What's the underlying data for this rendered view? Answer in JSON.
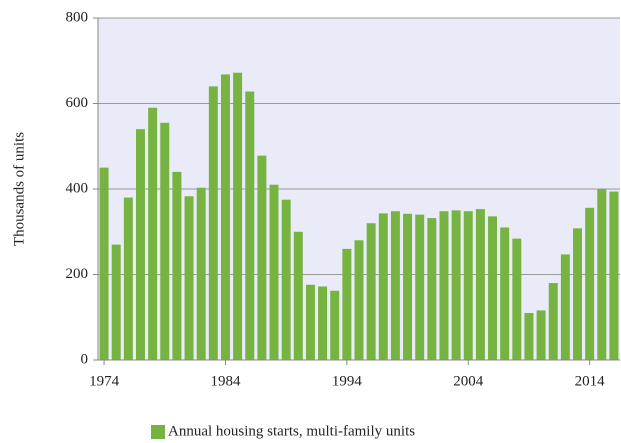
{
  "chart_data": {
    "type": "bar",
    "categories": [
      "1974",
      null,
      null,
      null,
      null,
      null,
      null,
      null,
      null,
      null,
      "1984",
      null,
      null,
      null,
      null,
      null,
      null,
      null,
      null,
      null,
      "1994",
      null,
      null,
      null,
      null,
      null,
      null,
      null,
      null,
      null,
      "2004",
      null,
      null,
      null,
      null,
      null,
      null,
      null,
      null,
      null,
      "2014",
      null,
      null
    ],
    "values": [
      450,
      270,
      380,
      540,
      590,
      555,
      440,
      383,
      403,
      640,
      668,
      672,
      628,
      478,
      410,
      375,
      300,
      176,
      172,
      162,
      260,
      280,
      320,
      343,
      348,
      342,
      340,
      332,
      348,
      350,
      348,
      353,
      336,
      310,
      284,
      110,
      116,
      180,
      247,
      308,
      356,
      400,
      394
    ],
    "series_name": "Annual housing starts, multi-family units",
    "color": "#77b341",
    "ylabel": "Thousands of units",
    "ylim": [
      0,
      800
    ],
    "yticks": [
      0,
      200,
      400,
      600,
      800
    ],
    "grid": true,
    "legend": "bottom"
  }
}
